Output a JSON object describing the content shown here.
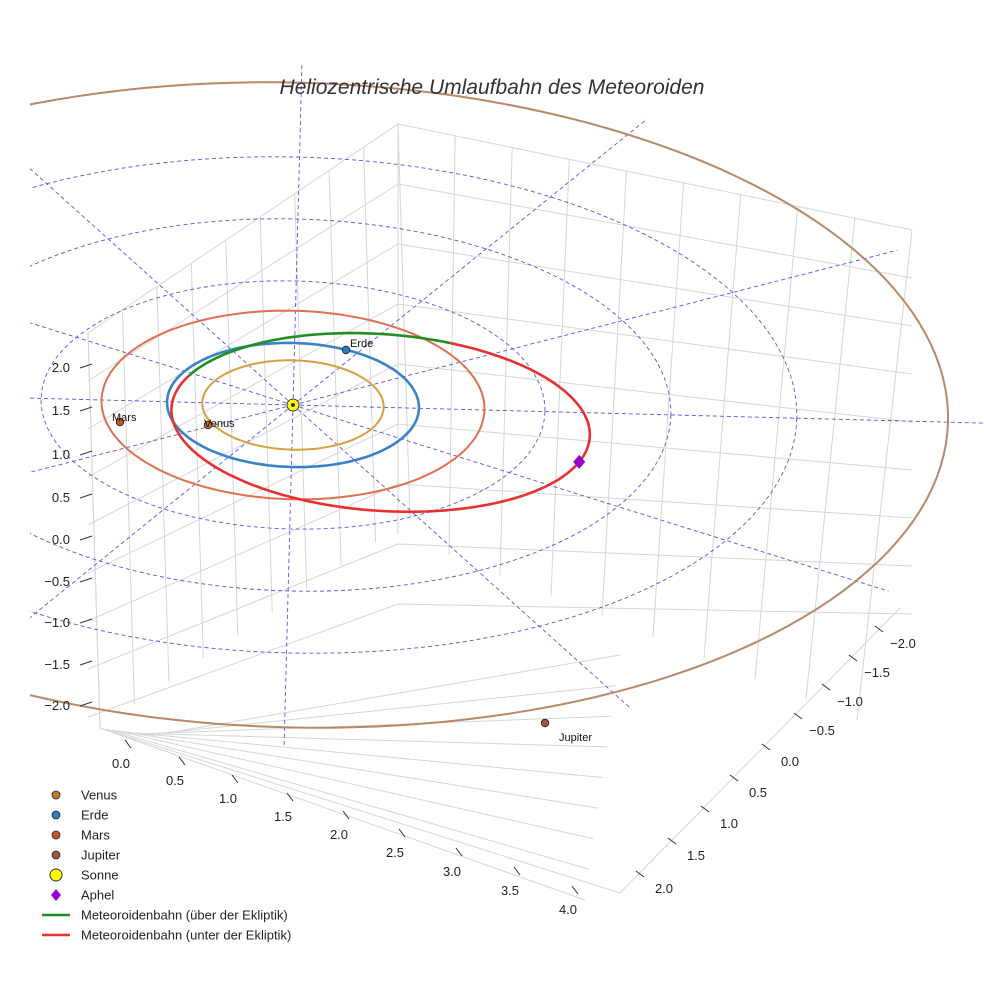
{
  "chart_data": {
    "type": "3d-orbit",
    "title": "Heliozentrische Umlaufbahn des Meteoroiden",
    "axes": {
      "x_ticks": [
        "0.0",
        "0.5",
        "1.0",
        "1.5",
        "2.0",
        "2.5",
        "3.0",
        "3.5",
        "4.0"
      ],
      "y_ticks": [
        "−2.0",
        "−1.5",
        "−1.0",
        "−0.5",
        "0.0",
        "0.5",
        "1.0",
        "1.5",
        "2.0"
      ],
      "z_ticks": [
        "−2.0",
        "−1.5",
        "−1.0",
        "−0.5",
        "0.0",
        "0.5",
        "1.0",
        "1.5",
        "2.0"
      ]
    },
    "planets": [
      {
        "name": "Venus",
        "label": "Venus",
        "orbit_radius_au": 0.72,
        "color": "#d4a040",
        "marker_color": "#c0782a"
      },
      {
        "name": "Erde",
        "label": "Erde",
        "orbit_radius_au": 1.0,
        "color": "#3a82c8",
        "marker_color": "#2e7dc0"
      },
      {
        "name": "Mars",
        "label": "Mars",
        "orbit_radius_au": 1.52,
        "color": "#e07050",
        "marker_color": "#c8502a"
      },
      {
        "name": "Jupiter",
        "label": "Jupiter",
        "orbit_radius_au": 5.2,
        "color": "#b88868",
        "marker_color": "#9a5a38"
      }
    ],
    "sun": {
      "name": "Sonne",
      "color": "#ffff00"
    },
    "aphel": {
      "name": "Aphel",
      "color": "#9400d3"
    },
    "meteoroid": {
      "perihelion_au": 0.95,
      "aphelion_au": 2.45,
      "series": [
        {
          "name": "Meteoroidenbahn (über der Ekliptik)",
          "color": "#1f8f1f"
        },
        {
          "name": "Meteoroidenbahn (unter der Ekliptik)",
          "color": "#e83030"
        }
      ]
    },
    "ecliptic_grid": {
      "rings_au": [
        1,
        2,
        3,
        4
      ],
      "color": "#5555dd"
    },
    "legend": [
      {
        "label": "Venus",
        "symbol": "dot",
        "color": "#c0782a"
      },
      {
        "label": "Erde",
        "symbol": "dot",
        "color": "#2e7dc0"
      },
      {
        "label": "Mars",
        "symbol": "dot",
        "color": "#c8502a"
      },
      {
        "label": "Jupiter",
        "symbol": "dot",
        "color": "#9a5a38"
      },
      {
        "label": "Sonne",
        "symbol": "sun",
        "color": "#ffff00"
      },
      {
        "label": "Aphel",
        "symbol": "diamond",
        "color": "#9400d3"
      },
      {
        "label": "Meteoroidenbahn (über der Ekliptik)",
        "symbol": "line",
        "color": "#1f8f1f"
      },
      {
        "label": "Meteoroidenbahn (unter der Ekliptik)",
        "symbol": "line",
        "color": "#e83030"
      }
    ],
    "legend_position": "bottom-left",
    "grid": true
  }
}
